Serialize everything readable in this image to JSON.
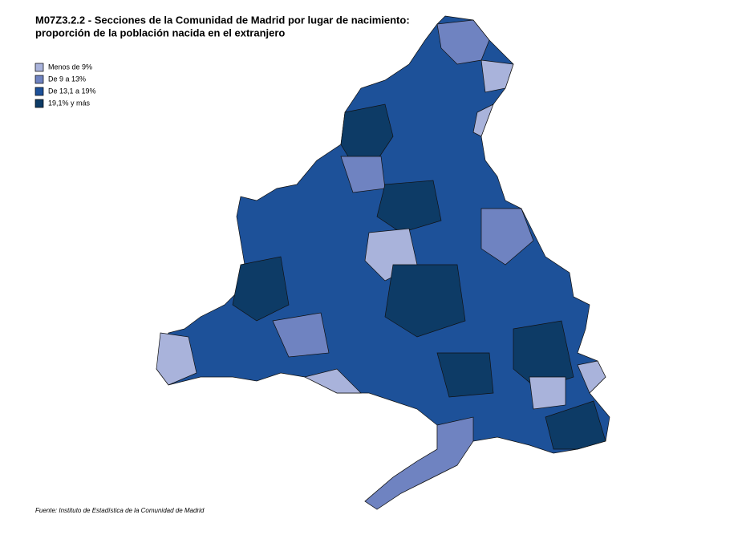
{
  "title": [
    "M07Z3.2.2 - Secciones de la Comunidad de Madrid por lugar de nacimiento:",
    "proporción de la población nacida en el extranjero"
  ],
  "legend": [
    {
      "label": "Menos de 9%",
      "color": "#a9b3db"
    },
    {
      "label": "De 9 a 13%",
      "color": "#6f83c1"
    },
    {
      "label": "De 13,1 a 19%",
      "color": "#1d5199"
    },
    {
      "label": "19,1% y más",
      "color": "#0d3b66"
    }
  ],
  "source": "Fuente: Instituto de Estadística de la Comunidad de Madrid"
}
